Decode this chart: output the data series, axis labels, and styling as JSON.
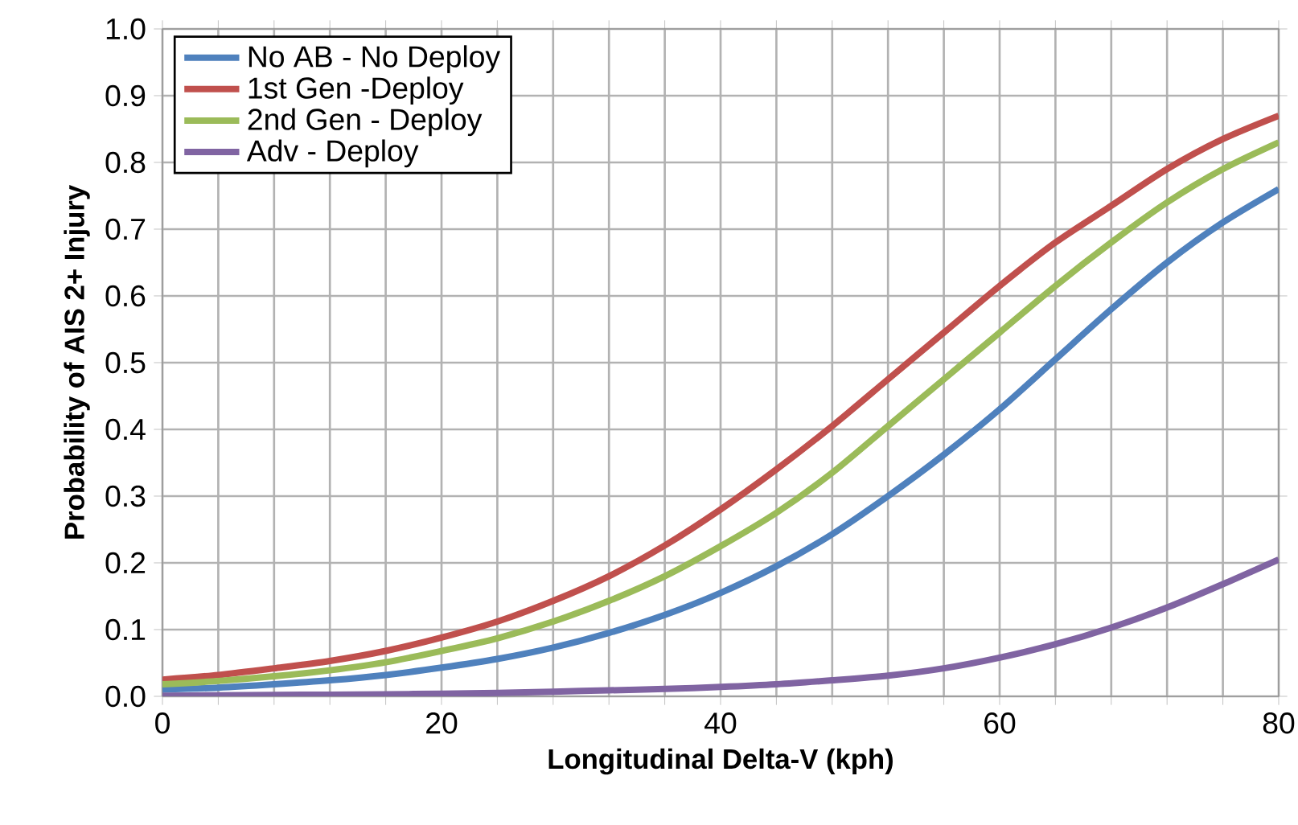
{
  "chart_data": {
    "type": "line",
    "xlabel": "Longitudinal Delta-V (kph)",
    "ylabel": "Probability of AIS 2+ Injury",
    "x": [
      0,
      4,
      8,
      12,
      16,
      20,
      24,
      28,
      32,
      36,
      40,
      44,
      48,
      52,
      56,
      60,
      64,
      68,
      72,
      76,
      80
    ],
    "series": [
      {
        "name": "No AB - No Deploy",
        "color": "#4f81bd",
        "values": [
          0.01,
          0.013,
          0.018,
          0.024,
          0.032,
          0.043,
          0.056,
          0.073,
          0.095,
          0.122,
          0.155,
          0.195,
          0.243,
          0.3,
          0.362,
          0.43,
          0.505,
          0.58,
          0.65,
          0.71,
          0.76
        ]
      },
      {
        "name": "1st Gen -Deploy",
        "color": "#c0504d",
        "values": [
          0.025,
          0.032,
          0.042,
          0.053,
          0.068,
          0.088,
          0.112,
          0.143,
          0.18,
          0.226,
          0.28,
          0.34,
          0.405,
          0.475,
          0.545,
          0.615,
          0.68,
          0.735,
          0.79,
          0.835,
          0.87
        ]
      },
      {
        "name": "2nd Gen - Deploy",
        "color": "#9bbb59",
        "values": [
          0.018,
          0.023,
          0.03,
          0.039,
          0.051,
          0.068,
          0.087,
          0.112,
          0.143,
          0.18,
          0.225,
          0.275,
          0.335,
          0.405,
          0.475,
          0.545,
          0.615,
          0.68,
          0.74,
          0.79,
          0.83
        ]
      },
      {
        "name": "Adv - Deploy",
        "color": "#8064a2",
        "values": [
          0.001,
          0.0015,
          0.002,
          0.0025,
          0.003,
          0.004,
          0.005,
          0.007,
          0.009,
          0.011,
          0.014,
          0.018,
          0.024,
          0.031,
          0.042,
          0.058,
          0.078,
          0.103,
          0.133,
          0.168,
          0.205
        ]
      }
    ],
    "xlim": [
      0,
      80
    ],
    "ylim": [
      0,
      1
    ],
    "xticks": [
      0,
      {
        "value": 4,
        "label": null
      },
      {
        "value": 8,
        "label": null
      },
      {
        "value": 12,
        "label": null
      },
      {
        "value": 16,
        "label": null
      },
      20,
      {
        "value": 24,
        "label": null
      },
      {
        "value": 28,
        "label": null
      },
      {
        "value": 32,
        "label": null
      },
      {
        "value": 36,
        "label": null
      },
      40,
      {
        "value": 44,
        "label": null
      },
      {
        "value": 48,
        "label": null
      },
      {
        "value": 52,
        "label": null
      },
      {
        "value": 56,
        "label": null
      },
      60,
      {
        "value": 64,
        "label": null
      },
      {
        "value": 68,
        "label": null
      },
      {
        "value": 72,
        "label": null
      },
      {
        "value": 76,
        "label": null
      },
      80
    ],
    "yticks": [
      {
        "value": 0,
        "label": "0.0"
      },
      {
        "value": 0.1,
        "label": "0.1"
      },
      {
        "value": 0.2,
        "label": "0.2"
      },
      {
        "value": 0.3,
        "label": "0.3"
      },
      {
        "value": 0.4,
        "label": "0.4"
      },
      {
        "value": 0.5,
        "label": "0.5"
      },
      {
        "value": 0.6,
        "label": "0.6"
      },
      {
        "value": 0.7,
        "label": "0.7"
      },
      {
        "value": 0.8,
        "label": "0.8"
      },
      {
        "value": 0.9,
        "label": "0.9"
      },
      {
        "value": 1,
        "label": "1.0"
      }
    ],
    "grid": true,
    "legend": "top left",
    "line_style": "solid",
    "marker": "none"
  }
}
